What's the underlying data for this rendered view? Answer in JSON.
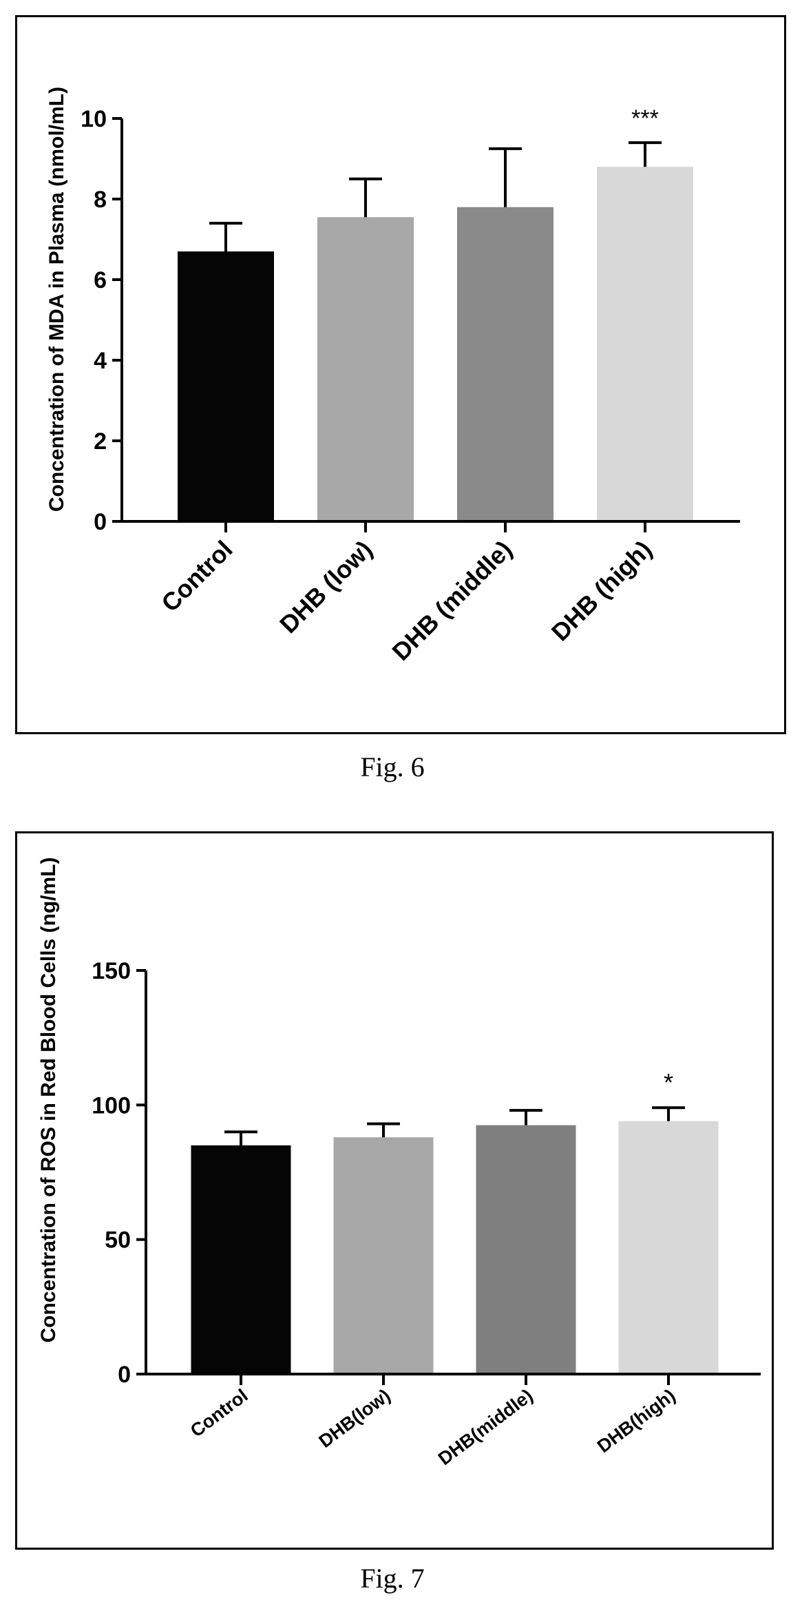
{
  "figures": [
    {
      "caption": "Fig. 6",
      "chart_data": {
        "type": "bar",
        "categories": [
          "Control",
          "DHB (low)",
          "DHB (middle)",
          "DHB (high)"
        ],
        "values": [
          6.7,
          7.55,
          7.8,
          8.8
        ],
        "errors": [
          0.7,
          0.95,
          1.45,
          0.6
        ],
        "significance": [
          "",
          "",
          "",
          "***"
        ],
        "bar_colors": [
          "#050505",
          "#a8a8a8",
          "#8a8a8a",
          "#d8d8d8"
        ],
        "title": "",
        "xlabel": "",
        "ylabel": "Concentration of MDA in Plasma (nmol/mL)",
        "ylim": [
          0,
          10
        ],
        "yticks": [
          "0",
          "2",
          "4",
          "6",
          "8",
          "10"
        ],
        "grid": false
      }
    },
    {
      "caption": "Fig. 7",
      "chart_data": {
        "type": "bar",
        "categories": [
          "Control",
          "DHB(low)",
          "DHB(middle)",
          "DHB(high)"
        ],
        "values": [
          85,
          88,
          92.5,
          94
        ],
        "errors": [
          5,
          5,
          5.5,
          5
        ],
        "significance": [
          "",
          "",
          "",
          "*"
        ],
        "bar_colors": [
          "#050505",
          "#a8a8a8",
          "#7f7f7f",
          "#d8d8d8"
        ],
        "title": "",
        "xlabel": "",
        "ylabel": "Concentration of ROS in Red Blood Cells (ng/mL)",
        "ylim": [
          0,
          150
        ],
        "yticks": [
          "0",
          "50",
          "100",
          "150"
        ],
        "grid": false
      }
    }
  ]
}
